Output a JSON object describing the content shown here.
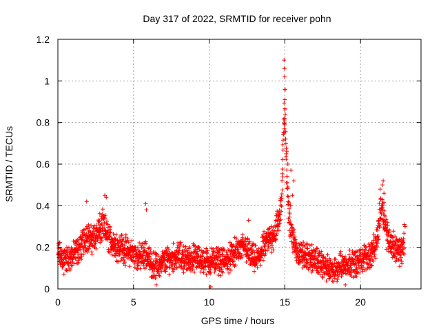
{
  "chart_data": {
    "type": "scatter",
    "title": "Day 317 of 2022, SRMTID for receiver pohn",
    "xlabel": "GPS time / hours",
    "ylabel": "SRMTID / TECUs",
    "xlim": [
      0,
      24
    ],
    "ylim": [
      0,
      1.2
    ],
    "x_ticks": [
      0,
      5,
      10,
      15,
      20
    ],
    "x_tick_labels": [
      "0",
      "5",
      "10",
      "15",
      "20"
    ],
    "y_ticks": [
      0,
      0.2,
      0.4,
      0.6,
      0.8,
      1,
      1.2
    ],
    "y_tick_labels": [
      "0",
      "0.2",
      "0.4",
      "0.6",
      "0.8",
      "1",
      "1.2"
    ],
    "grid": true,
    "marker": "+",
    "series": [
      {
        "name": "SRMTID",
        "color": "#ff0000",
        "profile_x": [
          0,
          0.3,
          0.6,
          1.0,
          1.5,
          1.9,
          2.2,
          2.6,
          3.0,
          3.4,
          3.8,
          4.2,
          4.6,
          5.0,
          5.4,
          5.8,
          6.2,
          6.6,
          7.0,
          7.5,
          8.0,
          8.5,
          9.0,
          9.5,
          10.0,
          10.5,
          11.0,
          11.5,
          12.0,
          12.4,
          12.8,
          13.2,
          13.6,
          14.0,
          14.4,
          14.6,
          14.8,
          14.9,
          15.0,
          15.1,
          15.2,
          15.3,
          15.5,
          15.8,
          16.2,
          16.6,
          17.0,
          17.4,
          17.8,
          18.2,
          18.6,
          19.0,
          19.4,
          19.8,
          20.2,
          20.6,
          21.0,
          21.2,
          21.4,
          21.5,
          21.7,
          22.0,
          22.3,
          22.6,
          22.9
        ],
        "profile_y": [
          0.17,
          0.15,
          0.14,
          0.16,
          0.2,
          0.26,
          0.23,
          0.27,
          0.3,
          0.24,
          0.21,
          0.2,
          0.18,
          0.17,
          0.15,
          0.17,
          0.12,
          0.11,
          0.13,
          0.15,
          0.16,
          0.14,
          0.15,
          0.14,
          0.13,
          0.14,
          0.13,
          0.16,
          0.19,
          0.2,
          0.15,
          0.14,
          0.2,
          0.24,
          0.28,
          0.33,
          0.45,
          0.7,
          0.9,
          0.6,
          0.45,
          0.36,
          0.25,
          0.18,
          0.16,
          0.15,
          0.14,
          0.12,
          0.1,
          0.08,
          0.11,
          0.12,
          0.13,
          0.12,
          0.15,
          0.16,
          0.2,
          0.3,
          0.42,
          0.38,
          0.28,
          0.22,
          0.2,
          0.18,
          0.2
        ],
        "spread": 0.07
      }
    ],
    "highlights": [
      {
        "x": 14.95,
        "y": 1.1
      },
      {
        "x": 14.97,
        "y": 1.06
      },
      {
        "x": 14.98,
        "y": 1.02
      },
      {
        "x": 15.0,
        "y": 0.96
      },
      {
        "x": 15.0,
        "y": 0.91
      },
      {
        "x": 14.98,
        "y": 0.82
      },
      {
        "x": 14.97,
        "y": 0.77
      },
      {
        "x": 15.05,
        "y": 0.72
      },
      {
        "x": 15.1,
        "y": 0.65
      },
      {
        "x": 15.2,
        "y": 0.6
      },
      {
        "x": 15.4,
        "y": 0.57
      },
      {
        "x": 15.6,
        "y": 0.52
      },
      {
        "x": 15.5,
        "y": 0.45
      },
      {
        "x": 5.8,
        "y": 0.41
      },
      {
        "x": 5.85,
        "y": 0.38
      },
      {
        "x": 3.1,
        "y": 0.45
      },
      {
        "x": 3.2,
        "y": 0.44
      },
      {
        "x": 1.9,
        "y": 0.42
      },
      {
        "x": 21.5,
        "y": 0.52
      },
      {
        "x": 21.45,
        "y": 0.5
      },
      {
        "x": 21.3,
        "y": 0.48
      },
      {
        "x": 21.55,
        "y": 0.46
      },
      {
        "x": 22.9,
        "y": 0.31
      },
      {
        "x": 22.95,
        "y": 0.3
      },
      {
        "x": 12.6,
        "y": 0.33
      },
      {
        "x": 6.5,
        "y": 0.02
      },
      {
        "x": 19.0,
        "y": 0.02
      },
      {
        "x": 10.1,
        "y": 0.01
      },
      {
        "x": 0.4,
        "y": 0.07
      }
    ]
  }
}
